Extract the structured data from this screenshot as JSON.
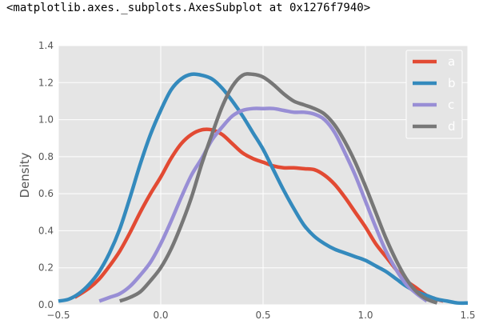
{
  "output": {
    "repr_text": "<matplotlib.axes._subplots.AxesSubplot at 0x1276f7940>"
  },
  "chart_data": {
    "type": "line",
    "style": "ggplot",
    "title": "",
    "xlabel": "",
    "ylabel": "Density",
    "xlim": [
      -0.5,
      1.5
    ],
    "ylim": [
      0.0,
      1.4
    ],
    "xticks": [
      -0.5,
      0.0,
      0.5,
      1.0,
      1.5
    ],
    "xtick_labels": [
      "−0.5",
      "0.0",
      "0.5",
      "1.0",
      "1.5"
    ],
    "yticks": [
      0.0,
      0.2,
      0.4,
      0.6,
      0.8,
      1.0,
      1.2,
      1.4
    ],
    "ytick_labels": [
      "0.0",
      "0.2",
      "0.4",
      "0.6",
      "0.8",
      "1.0",
      "1.2",
      "1.4"
    ],
    "grid": true,
    "background": "#e5e5e5",
    "legend": {
      "position": "top-right",
      "background": "#e5e5e5"
    },
    "series": [
      {
        "name": "a",
        "color": "#e24a33",
        "x": [
          -0.42,
          -0.35,
          -0.3,
          -0.25,
          -0.2,
          -0.15,
          -0.1,
          -0.05,
          0.0,
          0.05,
          0.1,
          0.15,
          0.2,
          0.25,
          0.3,
          0.35,
          0.4,
          0.45,
          0.5,
          0.55,
          0.6,
          0.65,
          0.7,
          0.75,
          0.8,
          0.85,
          0.9,
          0.95,
          1.0,
          1.05,
          1.1,
          1.15,
          1.2,
          1.25,
          1.3,
          1.35,
          1.38
        ],
        "y": [
          0.04,
          0.09,
          0.14,
          0.21,
          0.29,
          0.39,
          0.5,
          0.6,
          0.69,
          0.79,
          0.87,
          0.92,
          0.945,
          0.945,
          0.92,
          0.87,
          0.82,
          0.79,
          0.77,
          0.75,
          0.74,
          0.74,
          0.735,
          0.73,
          0.7,
          0.65,
          0.58,
          0.5,
          0.42,
          0.33,
          0.26,
          0.19,
          0.13,
          0.09,
          0.05,
          0.03,
          0.02
        ]
      },
      {
        "name": "b",
        "color": "#348abd",
        "x": [
          -0.5,
          -0.45,
          -0.4,
          -0.35,
          -0.3,
          -0.25,
          -0.2,
          -0.15,
          -0.1,
          -0.05,
          0.0,
          0.05,
          0.1,
          0.15,
          0.2,
          0.25,
          0.3,
          0.35,
          0.4,
          0.45,
          0.5,
          0.55,
          0.6,
          0.65,
          0.7,
          0.75,
          0.8,
          0.85,
          0.9,
          0.95,
          1.0,
          1.05,
          1.1,
          1.15,
          1.2,
          1.25,
          1.3,
          1.35,
          1.4,
          1.45,
          1.5
        ],
        "y": [
          0.02,
          0.03,
          0.06,
          0.11,
          0.18,
          0.28,
          0.41,
          0.58,
          0.76,
          0.92,
          1.05,
          1.16,
          1.22,
          1.245,
          1.24,
          1.22,
          1.17,
          1.1,
          1.02,
          0.93,
          0.84,
          0.73,
          0.62,
          0.52,
          0.43,
          0.37,
          0.33,
          0.3,
          0.28,
          0.26,
          0.24,
          0.21,
          0.18,
          0.14,
          0.1,
          0.07,
          0.05,
          0.03,
          0.02,
          0.01,
          0.01
        ]
      },
      {
        "name": "c",
        "color": "#988ed5",
        "x": [
          -0.3,
          -0.25,
          -0.2,
          -0.15,
          -0.1,
          -0.05,
          0.0,
          0.05,
          0.1,
          0.15,
          0.2,
          0.25,
          0.3,
          0.35,
          0.4,
          0.45,
          0.5,
          0.55,
          0.6,
          0.65,
          0.7,
          0.75,
          0.8,
          0.85,
          0.9,
          0.95,
          1.0,
          1.05,
          1.1,
          1.15,
          1.2,
          1.25,
          1.3
        ],
        "y": [
          0.02,
          0.04,
          0.06,
          0.1,
          0.16,
          0.23,
          0.33,
          0.45,
          0.58,
          0.7,
          0.79,
          0.89,
          0.96,
          1.02,
          1.05,
          1.06,
          1.06,
          1.06,
          1.05,
          1.04,
          1.04,
          1.03,
          1.0,
          0.93,
          0.82,
          0.7,
          0.56,
          0.42,
          0.29,
          0.19,
          0.11,
          0.06,
          0.02
        ]
      },
      {
        "name": "d",
        "color": "#777777",
        "x": [
          -0.2,
          -0.15,
          -0.1,
          -0.05,
          0.0,
          0.05,
          0.1,
          0.15,
          0.2,
          0.25,
          0.3,
          0.35,
          0.4,
          0.45,
          0.5,
          0.55,
          0.6,
          0.65,
          0.7,
          0.75,
          0.8,
          0.85,
          0.9,
          0.95,
          1.0,
          1.05,
          1.1,
          1.15,
          1.2,
          1.25,
          1.3,
          1.35
        ],
        "y": [
          0.02,
          0.04,
          0.07,
          0.13,
          0.2,
          0.3,
          0.43,
          0.58,
          0.76,
          0.92,
          1.07,
          1.18,
          1.24,
          1.245,
          1.23,
          1.19,
          1.14,
          1.1,
          1.08,
          1.06,
          1.03,
          0.97,
          0.88,
          0.77,
          0.64,
          0.5,
          0.36,
          0.24,
          0.14,
          0.07,
          0.03,
          0.01
        ]
      }
    ]
  }
}
